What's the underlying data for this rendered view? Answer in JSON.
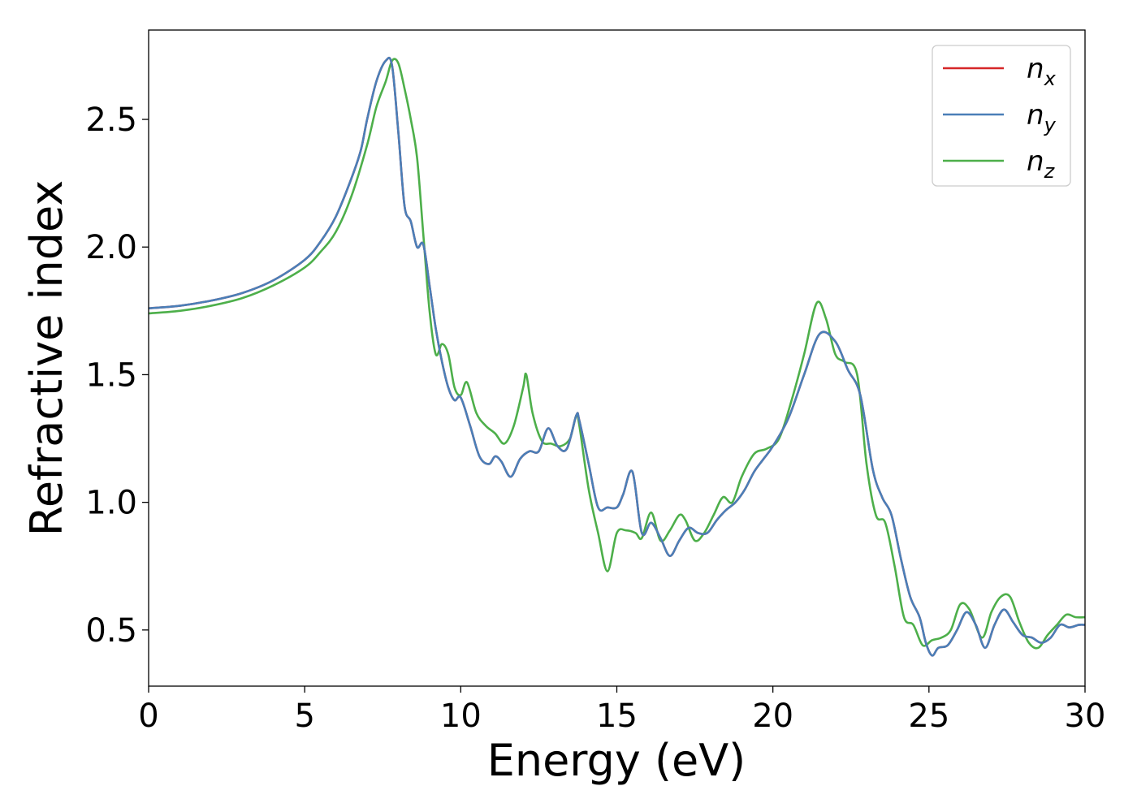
{
  "chart_data": {
    "type": "line",
    "xlabel": "Energy (eV)",
    "ylabel": "Refractive index",
    "xlim": [
      0,
      30
    ],
    "ylim": [
      0.28,
      2.85
    ],
    "xticks": [
      0,
      5,
      10,
      15,
      20,
      25,
      30
    ],
    "xtick_labels": [
      "0",
      "5",
      "10",
      "15",
      "20",
      "25",
      "30"
    ],
    "yticks": [
      0.5,
      1.0,
      1.5,
      2.0,
      2.5
    ],
    "ytick_labels": [
      "0.5",
      "1.0",
      "1.5",
      "2.0",
      "2.5"
    ],
    "grid": false,
    "legend_position": "top-right",
    "series": [
      {
        "name": "n",
        "subscript": "x",
        "color": "#d62728",
        "x": [
          0,
          1,
          2,
          3,
          4,
          5,
          5.5,
          6,
          6.5,
          6.8,
          7,
          7.3,
          7.6,
          7.8,
          8,
          8.2,
          8.4,
          8.6,
          8.8,
          9,
          9.2,
          9.4,
          9.6,
          9.8,
          10,
          10.3,
          10.6,
          10.9,
          11.1,
          11.3,
          11.6,
          11.9,
          12.2,
          12.5,
          12.8,
          13.1,
          13.4,
          13.7,
          13.8,
          14.1,
          14.4,
          14.7,
          15,
          15.2,
          15.5,
          15.8,
          16.1,
          16.4,
          16.7,
          17,
          17.3,
          17.6,
          17.9,
          18.2,
          18.5,
          18.8,
          19.1,
          19.4,
          19.7,
          20,
          20.5,
          21,
          21.5,
          22,
          22.4,
          22.8,
          23.2,
          23.5,
          23.8,
          24.1,
          24.4,
          24.7,
          24.9,
          25.1,
          25.3,
          25.6,
          25.9,
          26.2,
          26.5,
          26.8,
          27.1,
          27.4,
          27.7,
          28,
          28.3,
          28.6,
          28.9,
          29.2,
          29.5,
          29.8,
          30
        ],
        "values": [
          1.76,
          1.77,
          1.79,
          1.82,
          1.87,
          1.95,
          2.02,
          2.12,
          2.27,
          2.38,
          2.5,
          2.65,
          2.73,
          2.71,
          2.45,
          2.16,
          2.1,
          2.0,
          2.01,
          1.85,
          1.68,
          1.55,
          1.45,
          1.4,
          1.41,
          1.3,
          1.18,
          1.15,
          1.18,
          1.16,
          1.1,
          1.17,
          1.2,
          1.2,
          1.29,
          1.22,
          1.21,
          1.34,
          1.32,
          1.15,
          0.98,
          0.98,
          0.98,
          1.03,
          1.12,
          0.88,
          0.92,
          0.86,
          0.79,
          0.85,
          0.9,
          0.88,
          0.88,
          0.93,
          0.97,
          1.0,
          1.05,
          1.12,
          1.17,
          1.22,
          1.33,
          1.5,
          1.66,
          1.63,
          1.52,
          1.42,
          1.13,
          1.02,
          0.95,
          0.78,
          0.63,
          0.55,
          0.45,
          0.4,
          0.43,
          0.44,
          0.5,
          0.57,
          0.52,
          0.43,
          0.52,
          0.58,
          0.53,
          0.48,
          0.47,
          0.45,
          0.47,
          0.52,
          0.51,
          0.52,
          0.52
        ]
      },
      {
        "name": "n",
        "subscript": "y",
        "color": "#4a7fb8",
        "x": [
          0,
          1,
          2,
          3,
          4,
          5,
          5.5,
          6,
          6.5,
          6.8,
          7,
          7.3,
          7.6,
          7.8,
          8,
          8.2,
          8.4,
          8.6,
          8.8,
          9,
          9.2,
          9.4,
          9.6,
          9.8,
          10,
          10.3,
          10.6,
          10.9,
          11.1,
          11.3,
          11.6,
          11.9,
          12.2,
          12.5,
          12.8,
          13.1,
          13.4,
          13.7,
          13.8,
          14.1,
          14.4,
          14.7,
          15,
          15.2,
          15.5,
          15.8,
          16.1,
          16.4,
          16.7,
          17,
          17.3,
          17.6,
          17.9,
          18.2,
          18.5,
          18.8,
          19.1,
          19.4,
          19.7,
          20,
          20.5,
          21,
          21.5,
          22,
          22.4,
          22.8,
          23.2,
          23.5,
          23.8,
          24.1,
          24.4,
          24.7,
          24.9,
          25.1,
          25.3,
          25.6,
          25.9,
          26.2,
          26.5,
          26.8,
          27.1,
          27.4,
          27.7,
          28,
          28.3,
          28.6,
          28.9,
          29.2,
          29.5,
          29.8,
          30
        ],
        "values": [
          1.76,
          1.77,
          1.79,
          1.82,
          1.87,
          1.95,
          2.02,
          2.12,
          2.27,
          2.38,
          2.5,
          2.65,
          2.73,
          2.71,
          2.45,
          2.16,
          2.1,
          2.0,
          2.01,
          1.85,
          1.68,
          1.55,
          1.45,
          1.4,
          1.41,
          1.3,
          1.18,
          1.15,
          1.18,
          1.16,
          1.1,
          1.17,
          1.2,
          1.2,
          1.29,
          1.22,
          1.21,
          1.34,
          1.32,
          1.15,
          0.98,
          0.98,
          0.98,
          1.03,
          1.12,
          0.88,
          0.92,
          0.86,
          0.79,
          0.85,
          0.9,
          0.88,
          0.88,
          0.93,
          0.97,
          1.0,
          1.05,
          1.12,
          1.17,
          1.22,
          1.33,
          1.5,
          1.66,
          1.63,
          1.52,
          1.42,
          1.13,
          1.02,
          0.95,
          0.78,
          0.63,
          0.55,
          0.45,
          0.4,
          0.43,
          0.44,
          0.5,
          0.57,
          0.52,
          0.43,
          0.52,
          0.58,
          0.53,
          0.48,
          0.47,
          0.45,
          0.47,
          0.52,
          0.51,
          0.52,
          0.52
        ]
      },
      {
        "name": "n",
        "subscript": "z",
        "color": "#4daf4a",
        "x": [
          0,
          1,
          2,
          3,
          4,
          5,
          5.5,
          6,
          6.5,
          7,
          7.3,
          7.6,
          7.8,
          8,
          8.2,
          8.4,
          8.6,
          8.8,
          9,
          9.2,
          9.4,
          9.6,
          9.8,
          10,
          10.2,
          10.5,
          10.8,
          11.1,
          11.4,
          11.7,
          12.0,
          12.1,
          12.3,
          12.6,
          12.9,
          13.2,
          13.5,
          13.7,
          13.8,
          14.1,
          14.4,
          14.7,
          15,
          15.3,
          15.6,
          15.8,
          16.1,
          16.4,
          16.7,
          17,
          17.2,
          17.5,
          17.8,
          18.1,
          18.4,
          18.7,
          19,
          19.4,
          19.8,
          20.2,
          20.6,
          21,
          21.4,
          21.7,
          22,
          22.3,
          22.7,
          23,
          23.3,
          23.6,
          23.9,
          24.2,
          24.5,
          24.8,
          25.1,
          25.4,
          25.7,
          26,
          26.3,
          26.7,
          27.0,
          27.3,
          27.6,
          27.9,
          28.2,
          28.5,
          28.8,
          29.1,
          29.4,
          29.7,
          30
        ],
        "values": [
          1.74,
          1.75,
          1.77,
          1.8,
          1.85,
          1.92,
          1.98,
          2.06,
          2.2,
          2.4,
          2.55,
          2.65,
          2.73,
          2.72,
          2.62,
          2.5,
          2.35,
          2.05,
          1.75,
          1.58,
          1.62,
          1.58,
          1.45,
          1.42,
          1.47,
          1.35,
          1.3,
          1.27,
          1.23,
          1.3,
          1.45,
          1.5,
          1.35,
          1.24,
          1.23,
          1.22,
          1.25,
          1.34,
          1.3,
          1.05,
          0.88,
          0.73,
          0.88,
          0.89,
          0.88,
          0.86,
          0.96,
          0.85,
          0.89,
          0.95,
          0.93,
          0.85,
          0.88,
          0.95,
          1.02,
          1.0,
          1.1,
          1.19,
          1.21,
          1.25,
          1.4,
          1.58,
          1.78,
          1.72,
          1.58,
          1.55,
          1.5,
          1.15,
          0.95,
          0.92,
          0.75,
          0.55,
          0.52,
          0.44,
          0.46,
          0.47,
          0.5,
          0.6,
          0.58,
          0.47,
          0.57,
          0.63,
          0.63,
          0.53,
          0.45,
          0.43,
          0.48,
          0.52,
          0.56,
          0.55,
          0.55
        ]
      }
    ]
  }
}
